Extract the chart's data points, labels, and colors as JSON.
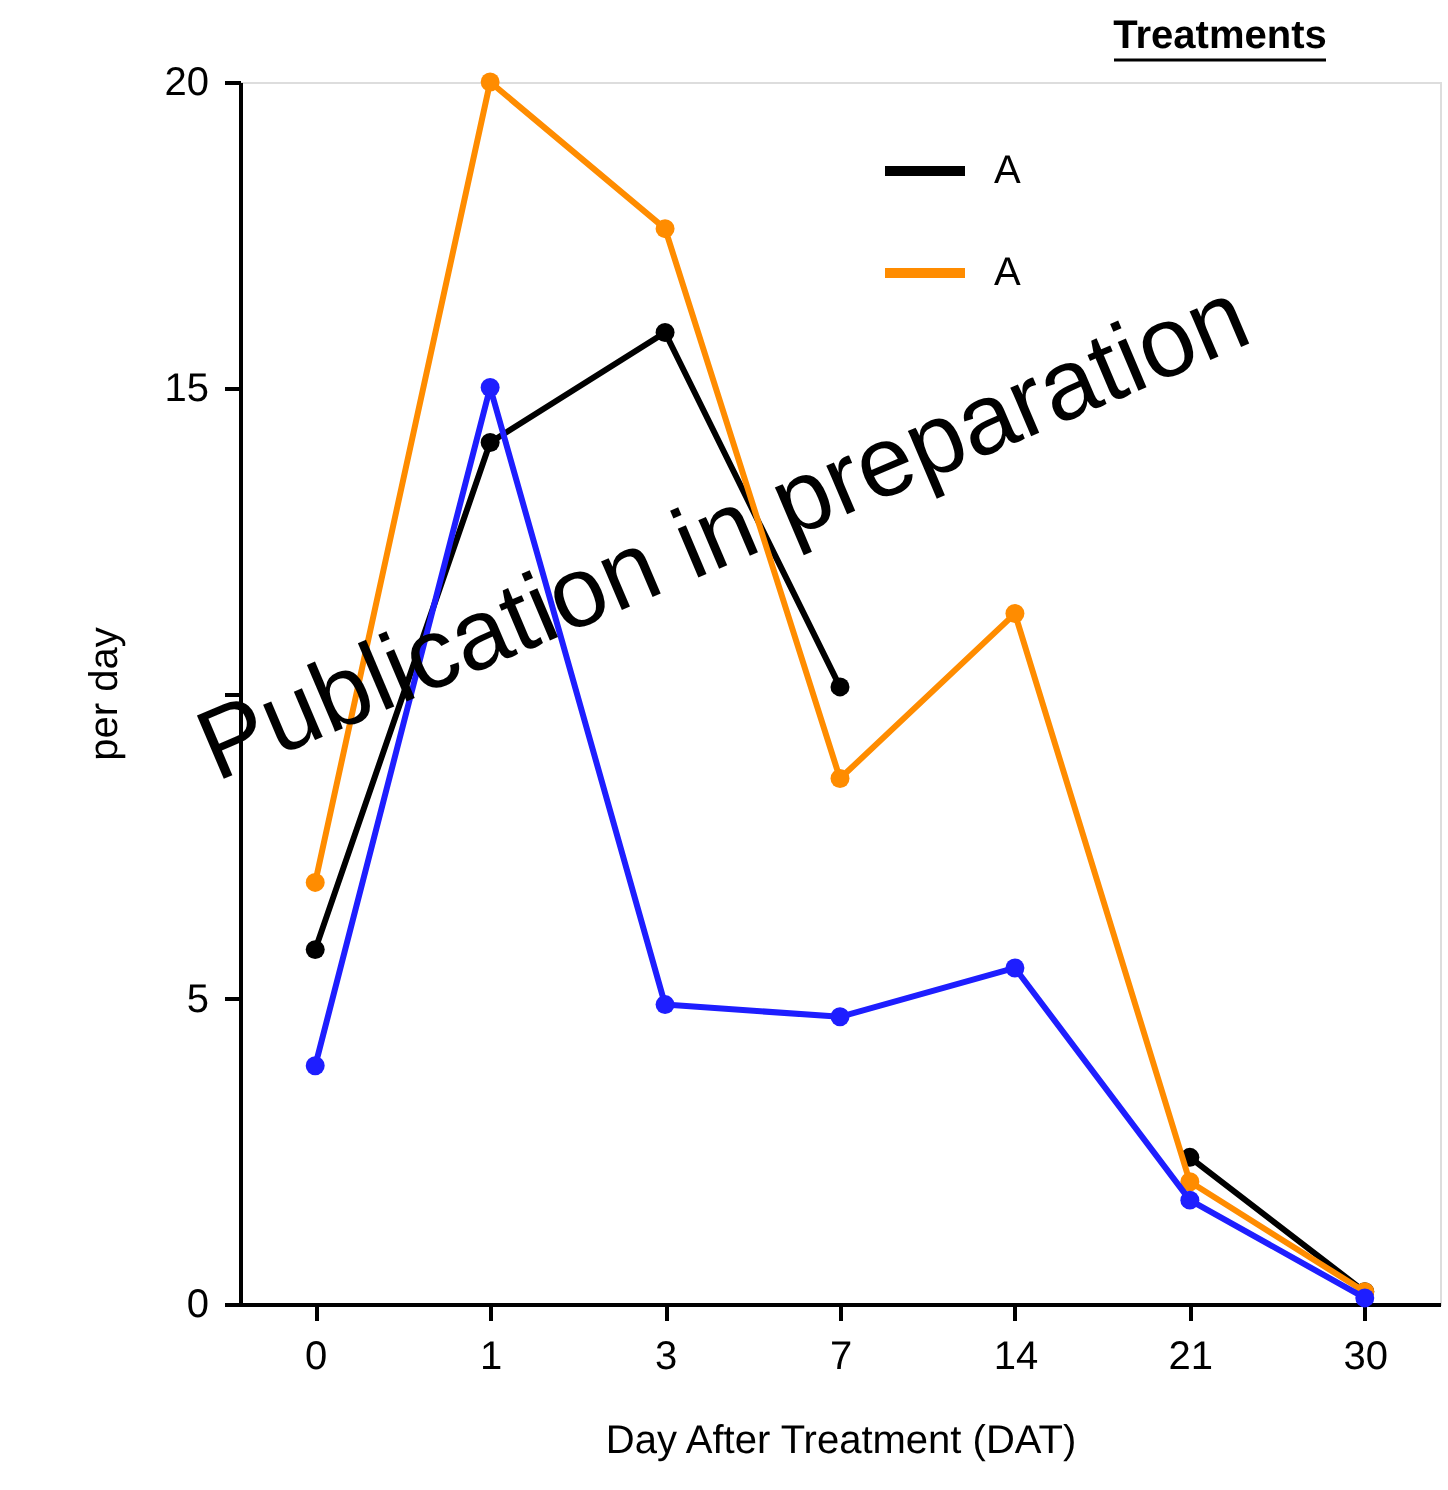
{
  "chart_data": {
    "type": "line",
    "xlabel": "Day After Treatment (DAT)",
    "ylabel": "per day",
    "legend_title": "Treatments",
    "categories": [
      "0",
      "1",
      "3",
      "7",
      "14",
      "21",
      "30"
    ],
    "series": [
      {
        "name": "A",
        "color": "#000000",
        "values": [
          5.8,
          14.1,
          15.9,
          10.1,
          null,
          2.4,
          0.2
        ]
      },
      {
        "name": "A",
        "color": "#ff8c00",
        "values": [
          6.9,
          20,
          17.6,
          8.6,
          11.3,
          2.0,
          0.2
        ]
      },
      {
        "color": "#1e1eff",
        "values": [
          3.9,
          15.0,
          4.9,
          4.7,
          5.5,
          1.7,
          0.1
        ]
      }
    ],
    "ylim": [
      0,
      20
    ],
    "yticks": [
      0,
      5,
      {
        "value": 10,
        "label": null
      },
      15,
      20
    ],
    "grid": false,
    "legend": "top right",
    "marker": "circle",
    "line_style": "solid",
    "annotations": [
      "Publication in preparation"
    ]
  }
}
